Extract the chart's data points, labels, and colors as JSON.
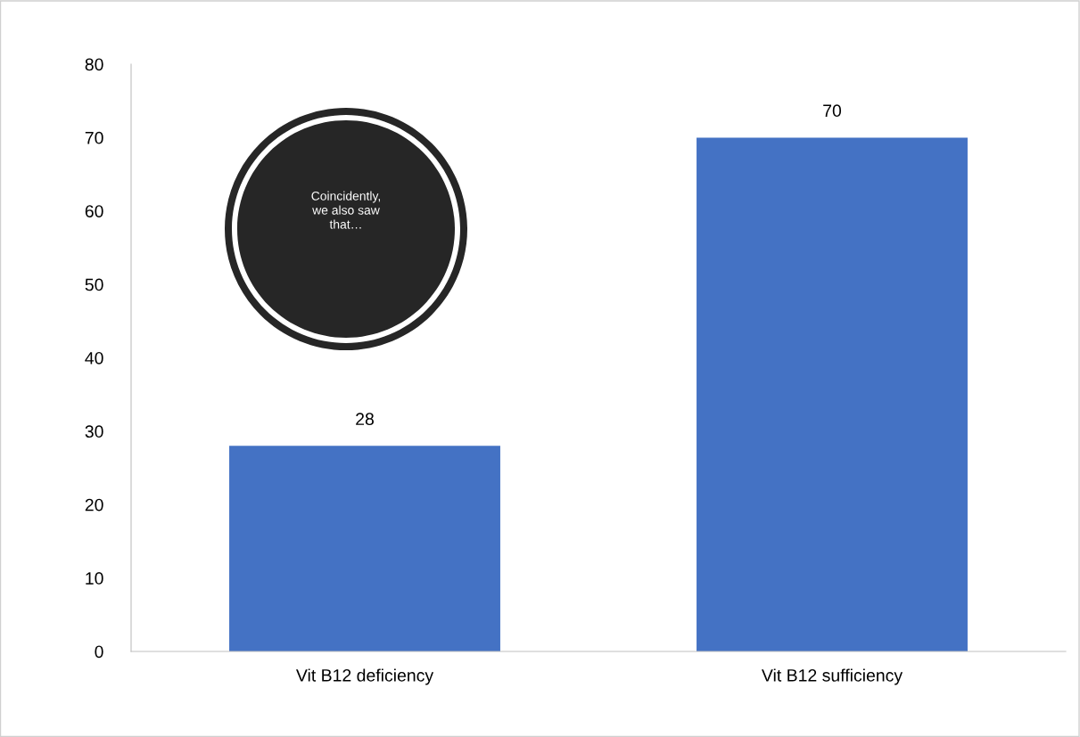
{
  "chart_data": {
    "type": "bar",
    "categories": [
      "Vit B12 deficiency",
      "Vit B12 sufficiency"
    ],
    "values": [
      28,
      70
    ],
    "color": "#4472c4",
    "ylim": [
      0,
      80
    ],
    "yticks": [
      0,
      10,
      20,
      30,
      40,
      50,
      60,
      70,
      80
    ],
    "grid": false,
    "data_labels": true,
    "annotations": [
      "Coincidently,\nwe also saw\nthat…"
    ]
  }
}
